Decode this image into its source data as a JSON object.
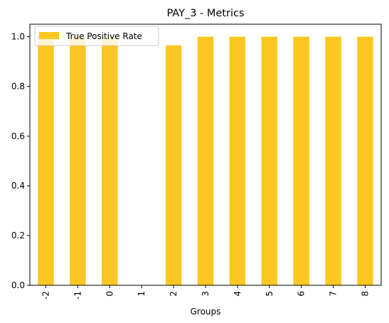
{
  "chart_data": {
    "type": "bar",
    "title": "PAY_3 - Metrics",
    "xlabel": "Groups",
    "ylabel": "",
    "categories": [
      "-2",
      "-1",
      "0",
      "1",
      "2",
      "3",
      "4",
      "5",
      "6",
      "7",
      "8"
    ],
    "series": [
      {
        "name": "True Positive Rate",
        "values": [
          1.0,
          1.0,
          1.0,
          0.0,
          0.965,
          1.0,
          1.0,
          1.0,
          1.0,
          1.0,
          1.0
        ],
        "color": "#fdc723"
      }
    ],
    "ylim": [
      0,
      1.05
    ],
    "yticks": [
      "0.0",
      "0.2",
      "0.4",
      "0.6",
      "0.8",
      "1.0"
    ],
    "grid": false,
    "legend_position": "top-left"
  }
}
